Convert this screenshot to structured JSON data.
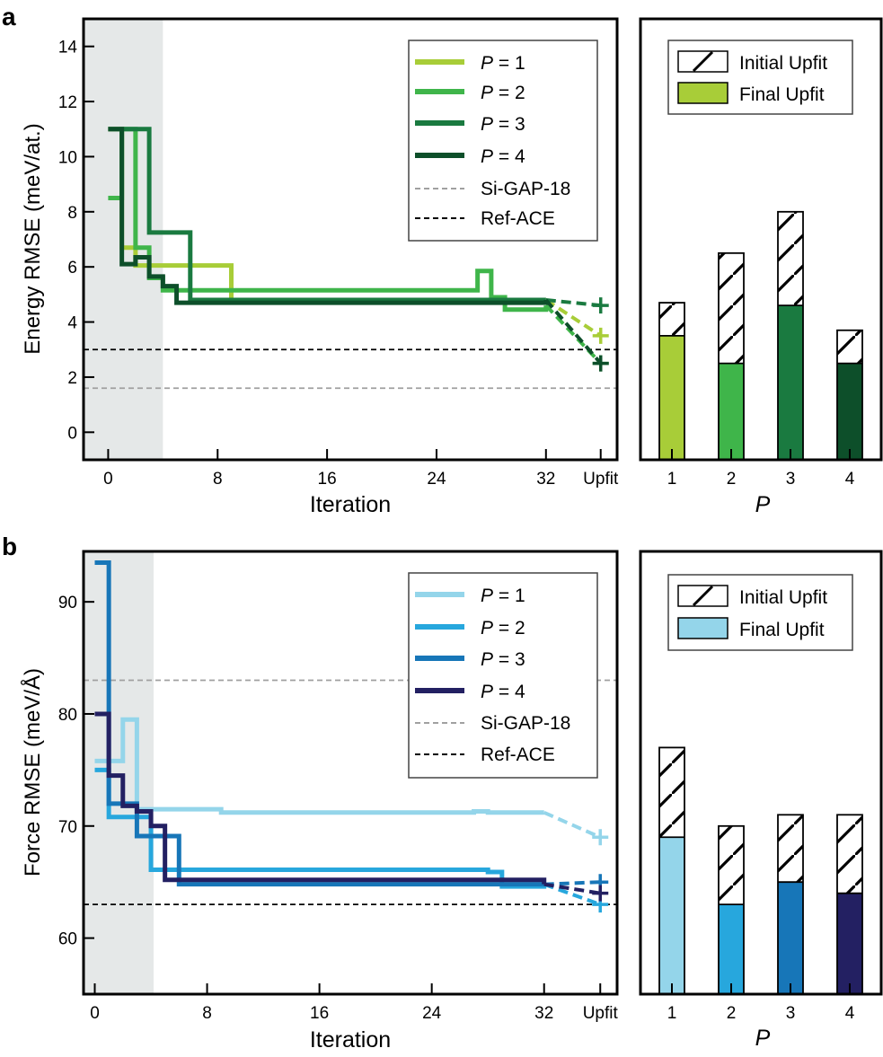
{
  "panel_labels": {
    "a": "a",
    "b": "b"
  },
  "legend_common": {
    "p_prefix": "P",
    "p_labels": [
      " = 1",
      " = 2",
      " = 3",
      " = 4"
    ],
    "gap_label": "Si-GAP-18",
    "ref_label": "Ref-ACE",
    "initial_label": "Initial Upfit",
    "final_label": "Final Upfit"
  },
  "colors": {
    "energy": [
      "#a8cd38",
      "#3fb54a",
      "#1a7a40",
      "#0d4f2a"
    ],
    "force": [
      "#94d5ea",
      "#27a7dd",
      "#1776b8",
      "#232062"
    ],
    "gap": "#a0a0a0",
    "ref": "#000000",
    "shade": "#e5e8e8"
  },
  "chart_data": [
    {
      "id": "energy-line",
      "type": "line",
      "xlabel": "Iteration",
      "ylabel": "Energy RMSE (meV/at.)",
      "xlim": [
        -1.8,
        37.2
      ],
      "ylim": [
        -1,
        15
      ],
      "xticks": [
        0,
        8,
        16,
        24,
        32
      ],
      "xtick_labels": [
        "0",
        "8",
        "16",
        "24",
        "32"
      ],
      "upfit_x": 36,
      "upfit_label": "Upfit",
      "yticks": [
        0,
        2,
        4,
        6,
        8,
        10,
        12,
        14
      ],
      "ytick_labels": [
        "0",
        "2",
        "4",
        "6",
        "8",
        "10",
        "12",
        "14"
      ],
      "shade_x": [
        -1.8,
        4
      ],
      "gap_value": 1.6,
      "ref_value": 3.0,
      "series": [
        {
          "name": "P = 1",
          "x": [
            0,
            1,
            2,
            9,
            32
          ],
          "y": [
            11.0,
            6.7,
            6.05,
            4.8,
            4.8
          ],
          "upfit": 3.5
        },
        {
          "name": "P = 2",
          "x": [
            0,
            1,
            2,
            3,
            4,
            27,
            28,
            29,
            32
          ],
          "y": [
            8.5,
            11.0,
            6.7,
            5.6,
            5.15,
            5.85,
            4.9,
            4.45,
            4.6
          ],
          "upfit": 2.5
        },
        {
          "name": "P = 3",
          "x": [
            0,
            1,
            3,
            6,
            32
          ],
          "y": [
            11.0,
            11.0,
            7.25,
            4.8,
            4.8
          ],
          "upfit": 4.6
        },
        {
          "name": "P = 4",
          "x": [
            0,
            1,
            2,
            3,
            4,
            5,
            32
          ],
          "y": [
            11.0,
            6.1,
            6.35,
            5.65,
            5.3,
            4.7,
            4.8
          ],
          "upfit": 2.5
        }
      ]
    },
    {
      "id": "energy-bar",
      "type": "bar",
      "xlabel": "P",
      "categories": [
        "1",
        "2",
        "3",
        "4"
      ],
      "ylim": [
        -1,
        15
      ],
      "series": [
        {
          "name": "Initial Upfit",
          "values": [
            4.7,
            6.5,
            8.0,
            3.7
          ]
        },
        {
          "name": "Final Upfit",
          "values": [
            3.5,
            2.5,
            4.6,
            2.5
          ]
        }
      ]
    },
    {
      "id": "force-line",
      "type": "line",
      "xlabel": "Iteration",
      "ylabel": "Force RMSE (meV/Å)",
      "xlim": [
        -0.8,
        37.2
      ],
      "ylim": [
        55,
        94.5
      ],
      "xticks": [
        0,
        8,
        16,
        24,
        32
      ],
      "xtick_labels": [
        "0",
        "8",
        "16",
        "24",
        "32"
      ],
      "upfit_x": 36,
      "upfit_label": "Upfit",
      "yticks": [
        60,
        70,
        80,
        90
      ],
      "ytick_labels": [
        "60",
        "70",
        "80",
        "90"
      ],
      "shade_x": [
        -0.8,
        4
      ],
      "gap_value": 83,
      "ref_value": 63,
      "series": [
        {
          "name": "P = 1",
          "x": [
            0,
            1,
            2,
            3,
            9,
            27,
            28,
            32
          ],
          "y": [
            75.8,
            75.8,
            79.5,
            71.5,
            71.2,
            71.3,
            71.2,
            71.2
          ],
          "upfit": 69
        },
        {
          "name": "P = 2",
          "x": [
            0,
            1,
            3,
            4,
            28,
            29,
            32
          ],
          "y": [
            75.0,
            70.8,
            70.8,
            66.1,
            65.9,
            64.6,
            64.8
          ],
          "upfit": 63
        },
        {
          "name": "P = 3",
          "x": [
            0,
            1,
            3,
            5,
            6,
            32
          ],
          "y": [
            93.5,
            72.0,
            69.1,
            69.1,
            64.8,
            64.8
          ],
          "upfit": 65
        },
        {
          "name": "P = 4",
          "x": [
            0,
            1,
            2,
            3,
            4,
            5,
            32
          ],
          "y": [
            80.0,
            74.5,
            71.8,
            71.3,
            70.0,
            65.2,
            64.8
          ],
          "upfit": 64
        }
      ]
    },
    {
      "id": "force-bar",
      "type": "bar",
      "xlabel": "P",
      "categories": [
        "1",
        "2",
        "3",
        "4"
      ],
      "ylim": [
        55,
        94.5
      ],
      "series": [
        {
          "name": "Initial Upfit",
          "values": [
            77,
            70,
            71,
            71
          ]
        },
        {
          "name": "Final Upfit",
          "values": [
            69,
            63,
            65,
            64
          ]
        }
      ]
    }
  ]
}
